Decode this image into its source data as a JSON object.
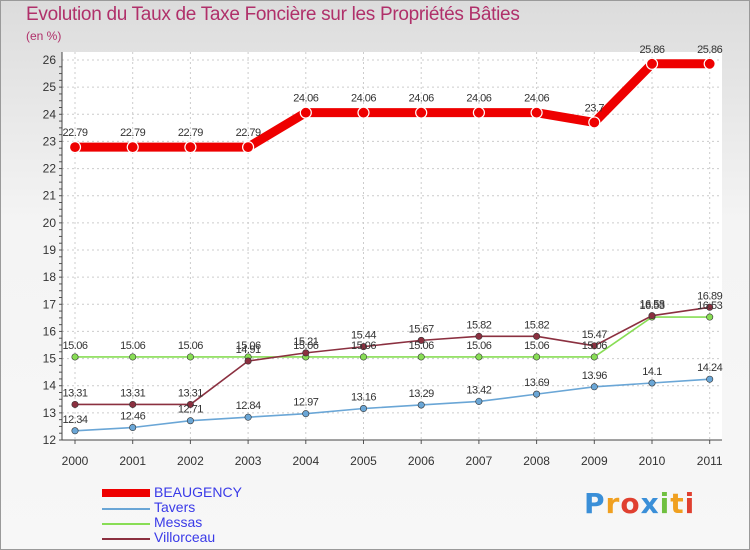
{
  "chart_data": {
    "type": "line",
    "title": "Evolution du Taux de Taxe Foncière sur les Propriétés Bâties",
    "ylabel": "(en %)",
    "xlabel": "",
    "ylim": [
      12,
      26
    ],
    "yticks": [
      "12",
      "13",
      "14",
      "15",
      "16",
      "17",
      "18",
      "19",
      "20",
      "21",
      "22",
      "23",
      "24",
      "25",
      "26"
    ],
    "categories": [
      "2000",
      "2001",
      "2002",
      "2003",
      "2004",
      "2005",
      "2006",
      "2007",
      "2008",
      "2009",
      "2010",
      "2011"
    ],
    "series": [
      {
        "name": "BEAUGENCY",
        "color": "#ee0000",
        "values": [
          22.79,
          22.79,
          22.79,
          22.79,
          24.06,
          24.06,
          24.06,
          24.06,
          24.06,
          23.7,
          25.86,
          25.86
        ],
        "labels": [
          "22.79",
          "22.79",
          "22.79",
          "22.79",
          "24.06",
          "24.06",
          "24.06",
          "24.06",
          "24.06",
          "23.7",
          "25.86",
          "25.86"
        ]
      },
      {
        "name": "Tavers",
        "color": "#6aa6d6",
        "values": [
          12.34,
          12.46,
          12.71,
          12.84,
          12.97,
          13.16,
          13.29,
          13.42,
          13.69,
          13.96,
          14.1,
          14.24
        ],
        "labels": [
          "12.34",
          "12.46",
          "12.71",
          "12.84",
          "12.97",
          "13.16",
          "13.29",
          "13.42",
          "13.69",
          "13.96",
          "14.1",
          "14.24"
        ]
      },
      {
        "name": "Messas",
        "color": "#88dd55",
        "values": [
          15.06,
          15.06,
          15.06,
          15.06,
          15.06,
          15.06,
          15.06,
          15.06,
          15.06,
          15.06,
          16.53,
          16.53
        ],
        "labels": [
          "15.06",
          "15.06",
          "15.06",
          "15.06",
          "15.06",
          "15.06",
          "15.06",
          "15.06",
          "15.06",
          "15.06",
          "16.53",
          "16.53"
        ]
      },
      {
        "name": "Villorceau",
        "color": "#8b3040",
        "values": [
          13.31,
          13.31,
          13.31,
          14.91,
          15.21,
          15.44,
          15.67,
          15.82,
          15.82,
          15.47,
          16.58,
          16.89
        ],
        "labels": [
          "13.31",
          "13.31",
          "13.31",
          "14.91",
          "15.21",
          "15.44",
          "15.67",
          "15.82",
          "15.82",
          "15.47",
          "16.58",
          "16.89"
        ]
      }
    ]
  },
  "logo": {
    "letters": [
      "P",
      "r",
      "o",
      "x",
      "i",
      "t",
      "i"
    ],
    "colors": [
      "#3a8fd8",
      "#f0a020",
      "#e04030",
      "#3a8fd8",
      "#70c040",
      "#f0a020",
      "#e04030"
    ]
  }
}
